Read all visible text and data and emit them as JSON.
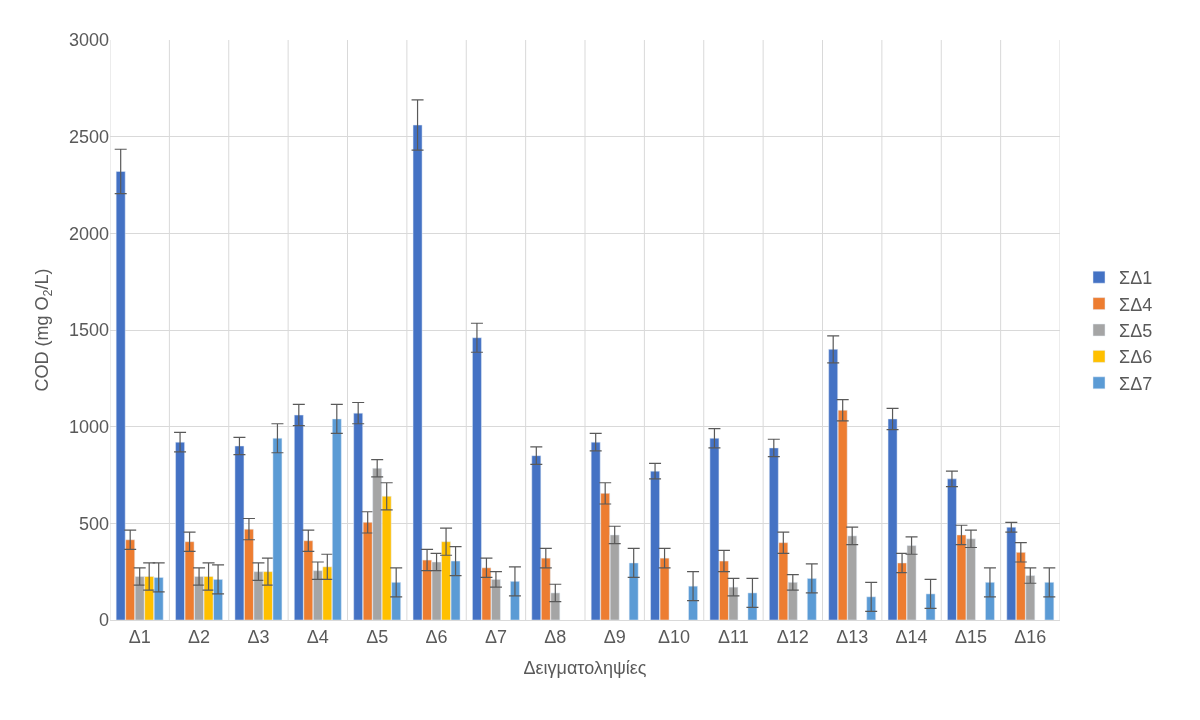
{
  "chart_data": {
    "type": "bar",
    "xlabel": "Δειγματοληψίες",
    "ylabel": "COD (mg O$_{2}$/L)",
    "categories": [
      "Δ1",
      "Δ2",
      "Δ3",
      "Δ4",
      "Δ5",
      "Δ6",
      "Δ7",
      "Δ8",
      "Δ9",
      "Δ10",
      "Δ11",
      "Δ12",
      "Δ13",
      "Δ14",
      "Δ15",
      "Δ16"
    ],
    "series": [
      {
        "name": "ΣΔ1",
        "color": "#4472c4",
        "values": [
          2320,
          920,
          900,
          1060,
          1070,
          2560,
          1460,
          850,
          920,
          770,
          940,
          890,
          1400,
          1040,
          730,
          480
        ],
        "errors": [
          115,
          50,
          45,
          55,
          55,
          130,
          75,
          45,
          45,
          40,
          50,
          45,
          70,
          55,
          40,
          25
        ]
      },
      {
        "name": "ΣΔ4",
        "color": "#ed7d31",
        "values": [
          415,
          405,
          470,
          410,
          505,
          310,
          270,
          320,
          655,
          320,
          305,
          400,
          1085,
          295,
          440,
          350
        ],
        "errors": [
          50,
          50,
          55,
          55,
          55,
          55,
          50,
          50,
          55,
          50,
          55,
          55,
          55,
          50,
          50,
          50
        ]
      },
      {
        "name": "ΣΔ5",
        "color": "#a5a5a5",
        "values": [
          225,
          225,
          250,
          255,
          785,
          300,
          210,
          140,
          440,
          null,
          170,
          195,
          435,
          385,
          420,
          230
        ],
        "errors": [
          45,
          45,
          45,
          45,
          45,
          45,
          40,
          45,
          45,
          null,
          45,
          40,
          45,
          45,
          45,
          40
        ]
      },
      {
        "name": "ΣΔ6",
        "color": "#ffc000",
        "values": [
          225,
          225,
          250,
          275,
          640,
          405,
          null,
          null,
          null,
          null,
          null,
          null,
          null,
          null,
          null,
          null
        ],
        "errors": [
          70,
          70,
          70,
          65,
          70,
          70,
          null,
          null,
          null,
          null,
          null,
          null,
          null,
          null,
          null,
          null
        ]
      },
      {
        "name": "ΣΔ7",
        "color": "#5b9bd5",
        "values": [
          220,
          210,
          940,
          1040,
          195,
          305,
          200,
          null,
          295,
          175,
          140,
          215,
          120,
          135,
          195,
          195
        ],
        "errors": [
          75,
          75,
          75,
          75,
          75,
          75,
          75,
          null,
          75,
          75,
          75,
          75,
          75,
          75,
          75,
          75
        ]
      }
    ],
    "ylim": [
      0,
      3000
    ],
    "yticks": [
      0,
      500,
      1000,
      1500,
      2000,
      2500,
      3000
    ],
    "grid": true,
    "legend": "right"
  }
}
